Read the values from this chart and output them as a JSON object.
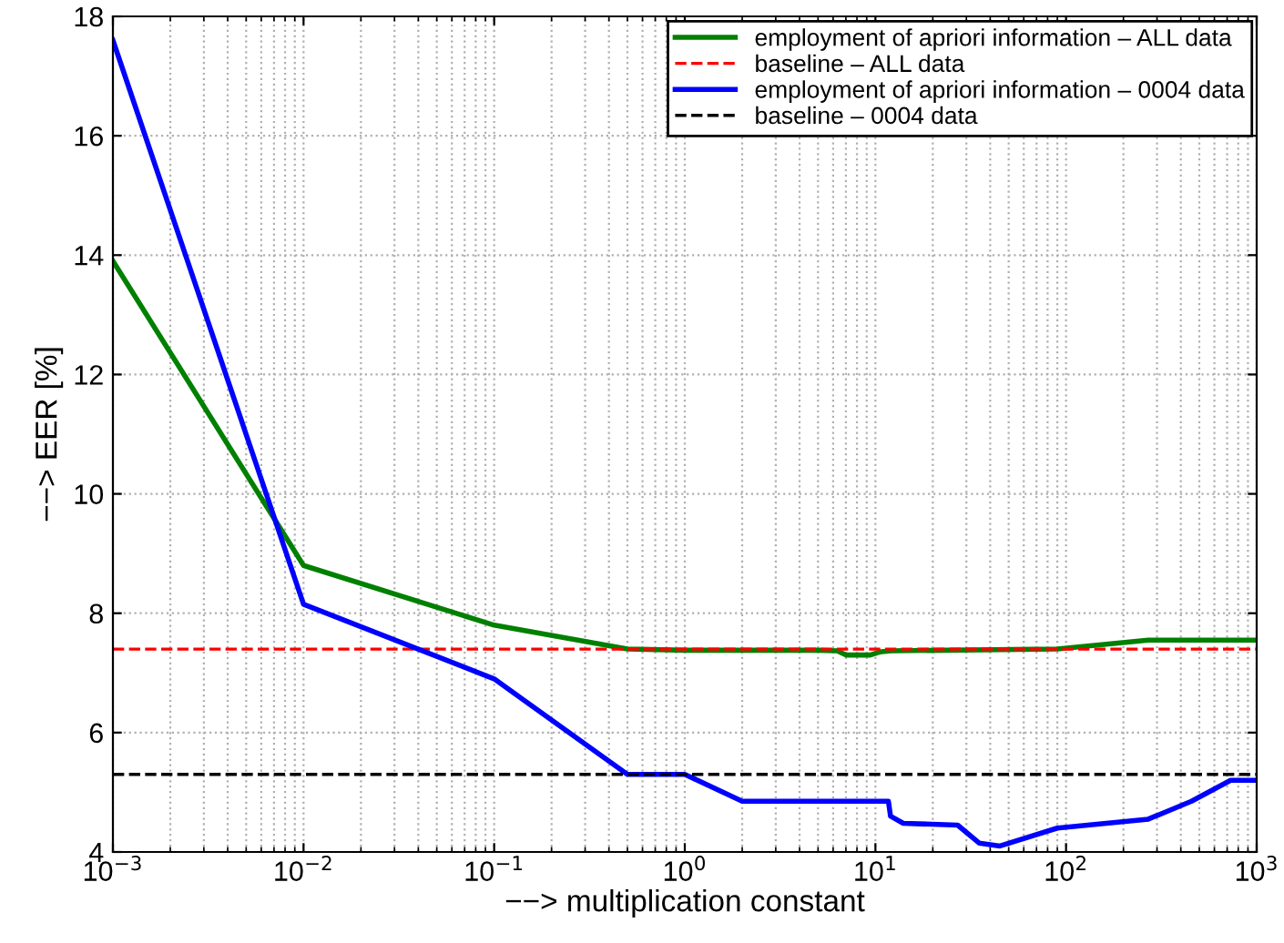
{
  "chart_data": {
    "type": "line",
    "xlabel": "−−> multiplication constant",
    "ylabel": "−−> EER [%]",
    "log": "x",
    "grid": true,
    "legend": "top right",
    "xlim": [
      0.001,
      1000
    ],
    "xticks": [
      {
        "value": 0.001,
        "label": "10$^{−3}$"
      },
      {
        "value": 0.01,
        "label": "10$^{−2}$"
      },
      {
        "value": 0.1,
        "label": "10$^{−1}$"
      },
      {
        "value": 1,
        "label": "10$^{0}$"
      },
      {
        "value": 10,
        "label": "10$^{1}$"
      },
      {
        "value": 100,
        "label": "10$^{2}$"
      },
      {
        "value": 1000,
        "label": "10$^{3}$"
      }
    ],
    "ylim": [
      4,
      18
    ],
    "yticks": [
      4,
      6,
      8,
      10,
      12,
      14,
      16,
      18
    ],
    "series": [
      {
        "name": "employment of apriori information – ALL data",
        "color": "#008000",
        "x": [
          0.001,
          0.01,
          0.1,
          0.5,
          1,
          5,
          6.3,
          7,
          9.4,
          10.5,
          12,
          90,
          270,
          1000
        ],
        "values": [
          13.9,
          8.8,
          7.8,
          7.4,
          7.38,
          7.38,
          7.37,
          7.3,
          7.3,
          7.35,
          7.37,
          7.4,
          7.55,
          7.55
        ]
      },
      {
        "name": "baseline – ALL data",
        "color": "#ff0000",
        "line_style": "dashed",
        "x": [
          0.001,
          1000
        ],
        "values": [
          7.4,
          7.4
        ]
      },
      {
        "name": "employment of apriori information – 0004 data",
        "color": "#0000ff",
        "x": [
          0.001,
          0.01,
          0.1,
          0.5,
          1,
          2,
          11.7,
          12,
          14,
          27,
          35,
          45,
          90,
          270,
          455,
          730,
          1000
        ],
        "values": [
          17.6,
          8.15,
          6.9,
          5.3,
          5.3,
          4.85,
          4.85,
          4.6,
          4.48,
          4.45,
          4.15,
          4.1,
          4.4,
          4.55,
          4.85,
          5.2,
          5.2
        ]
      },
      {
        "name": "baseline – 0004 data",
        "color": "#000000",
        "line_style": "dashed",
        "x": [
          0.001,
          1000
        ],
        "values": [
          5.3,
          5.3
        ]
      }
    ]
  }
}
